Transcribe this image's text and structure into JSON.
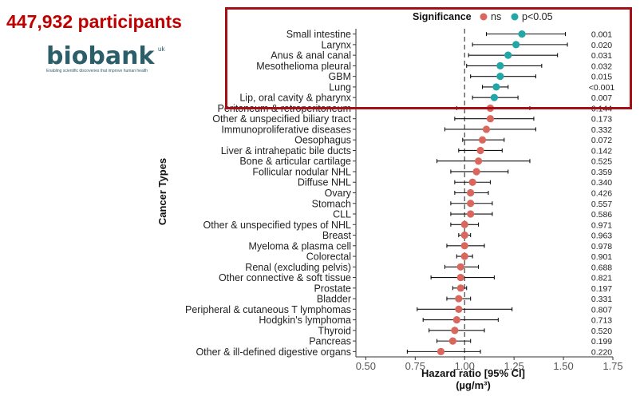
{
  "headline": "447,932 participants",
  "logo": {
    "wordmark": "biobank",
    "superscript": "uk",
    "tagline": "Enabling scientific discoveries that improve human health"
  },
  "colors": {
    "headline": "#c00000",
    "ns": "#d9675e",
    "significant": "#22a6a6",
    "highlight_box": "#a50f15",
    "logo": "#2c5e6a"
  },
  "chart_data": {
    "type": "forest",
    "title": "",
    "xlabel": "Hazard ratio [95% CI]",
    "xlabel_units": "(µg/m³)",
    "ylabel": "Cancer Types",
    "xlim": [
      0.45,
      1.75
    ],
    "xticks": [
      0.5,
      0.75,
      1.0,
      1.25,
      1.5,
      1.75
    ],
    "xtick_labels": [
      "0.50",
      "0.75",
      "1.00",
      "1.25",
      "1.50",
      "1.75"
    ],
    "reference_line": 1.0,
    "legend": {
      "title": "Significance",
      "position": "top",
      "entries": [
        {
          "label": "ns",
          "key": "ns"
        },
        {
          "label": "p<0.05",
          "key": "sig"
        }
      ]
    },
    "rows": [
      {
        "label": "Small intestine",
        "hr": 1.29,
        "lo": 1.11,
        "hi": 1.51,
        "p": "0.001",
        "sig": true
      },
      {
        "label": "Larynx",
        "hr": 1.26,
        "lo": 1.04,
        "hi": 1.52,
        "p": "0.020",
        "sig": true
      },
      {
        "label": "Anus & anal canal",
        "hr": 1.22,
        "lo": 1.02,
        "hi": 1.47,
        "p": "0.031",
        "sig": true
      },
      {
        "label": "Mesothelioma pleural",
        "hr": 1.18,
        "lo": 1.01,
        "hi": 1.39,
        "p": "0.032",
        "sig": true
      },
      {
        "label": "GBM",
        "hr": 1.18,
        "lo": 1.03,
        "hi": 1.36,
        "p": "0.015",
        "sig": true
      },
      {
        "label": "Lung",
        "hr": 1.16,
        "lo": 1.09,
        "hi": 1.22,
        "p": "<0.001",
        "sig": true
      },
      {
        "label": "Lip, oral cavity & pharynx",
        "hr": 1.15,
        "lo": 1.04,
        "hi": 1.27,
        "p": "0.007",
        "sig": true
      },
      {
        "label": "Peritoneum & retroperitoneum",
        "hr": 1.13,
        "lo": 0.96,
        "hi": 1.33,
        "p": "0.144",
        "sig": false
      },
      {
        "label": "Other & unspecified biliary tract",
        "hr": 1.13,
        "lo": 0.95,
        "hi": 1.35,
        "p": "0.173",
        "sig": false
      },
      {
        "label": "Immunoproliferative diseases",
        "hr": 1.11,
        "lo": 0.9,
        "hi": 1.36,
        "p": "0.332",
        "sig": false
      },
      {
        "label": "Oesophagus",
        "hr": 1.09,
        "lo": 0.99,
        "hi": 1.2,
        "p": "0.072",
        "sig": false
      },
      {
        "label": "Liver & intrahepatic bile ducts",
        "hr": 1.08,
        "lo": 0.97,
        "hi": 1.19,
        "p": "0.142",
        "sig": false
      },
      {
        "label": "Bone & articular cartilage",
        "hr": 1.07,
        "lo": 0.86,
        "hi": 1.33,
        "p": "0.525",
        "sig": false
      },
      {
        "label": "Follicular nodular NHL",
        "hr": 1.06,
        "lo": 0.93,
        "hi": 1.22,
        "p": "0.359",
        "sig": false
      },
      {
        "label": "Diffuse NHL",
        "hr": 1.04,
        "lo": 0.95,
        "hi": 1.13,
        "p": "0.340",
        "sig": false
      },
      {
        "label": "Ovary",
        "hr": 1.03,
        "lo": 0.95,
        "hi": 1.12,
        "p": "0.426",
        "sig": false
      },
      {
        "label": "Stomach",
        "hr": 1.03,
        "lo": 0.93,
        "hi": 1.14,
        "p": "0.557",
        "sig": false
      },
      {
        "label": "CLL",
        "hr": 1.03,
        "lo": 0.93,
        "hi": 1.14,
        "p": "0.586",
        "sig": false
      },
      {
        "label": "Other & unspecified types of NHL",
        "hr": 1.0,
        "lo": 0.93,
        "hi": 1.07,
        "p": "0.971",
        "sig": false
      },
      {
        "label": "Breast",
        "hr": 1.0,
        "lo": 0.97,
        "hi": 1.03,
        "p": "0.963",
        "sig": false
      },
      {
        "label": "Myeloma & plasma cell",
        "hr": 1.0,
        "lo": 0.91,
        "hi": 1.1,
        "p": "0.978",
        "sig": false
      },
      {
        "label": "Colorectal",
        "hr": 1.0,
        "lo": 0.96,
        "hi": 1.04,
        "p": "0.901",
        "sig": false
      },
      {
        "label": "Renal (excluding pelvis)",
        "hr": 0.98,
        "lo": 0.9,
        "hi": 1.07,
        "p": "0.688",
        "sig": false
      },
      {
        "label": "Other connective & soft tissue",
        "hr": 0.98,
        "lo": 0.83,
        "hi": 1.15,
        "p": "0.821",
        "sig": false
      },
      {
        "label": "Prostate",
        "hr": 0.98,
        "lo": 0.94,
        "hi": 1.01,
        "p": "0.197",
        "sig": false
      },
      {
        "label": "Bladder",
        "hr": 0.97,
        "lo": 0.91,
        "hi": 1.03,
        "p": "0.331",
        "sig": false
      },
      {
        "label": "Peripheral & cutaneous T lymphomas",
        "hr": 0.97,
        "lo": 0.76,
        "hi": 1.24,
        "p": "0.807",
        "sig": false
      },
      {
        "label": "Hodgkin's lymphoma",
        "hr": 0.96,
        "lo": 0.79,
        "hi": 1.17,
        "p": "0.713",
        "sig": false
      },
      {
        "label": "Thyroid",
        "hr": 0.95,
        "lo": 0.82,
        "hi": 1.1,
        "p": "0.520",
        "sig": false
      },
      {
        "label": "Pancreas",
        "hr": 0.94,
        "lo": 0.86,
        "hi": 1.03,
        "p": "0.199",
        "sig": false
      },
      {
        "label": "Other & ill-defined digestive organs",
        "hr": 0.88,
        "lo": 0.71,
        "hi": 1.08,
        "p": "0.220",
        "sig": false
      }
    ]
  }
}
